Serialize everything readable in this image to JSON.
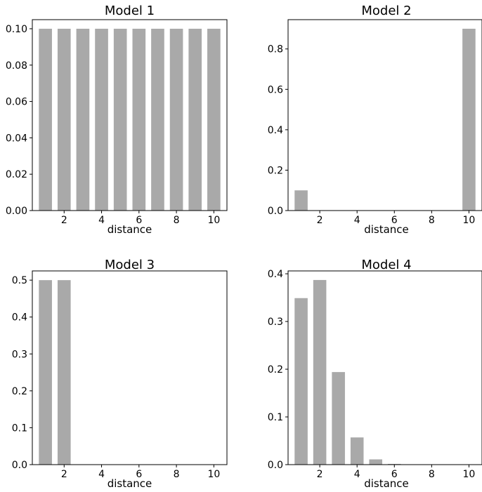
{
  "chart_data": [
    {
      "type": "bar",
      "title": "Model 1",
      "xlabel": "distance",
      "ylabel": "",
      "x": [
        1,
        2,
        3,
        4,
        5,
        6,
        7,
        8,
        9,
        10
      ],
      "values": [
        0.1,
        0.1,
        0.1,
        0.1,
        0.1,
        0.1,
        0.1,
        0.1,
        0.1,
        0.1
      ],
      "xlim": [
        0.3,
        10.7
      ],
      "ylim": [
        0,
        0.105
      ],
      "xticks": [
        2,
        4,
        6,
        8,
        10
      ],
      "xtick_labels": [
        "2",
        "4",
        "6",
        "8",
        "10"
      ],
      "yticks": [
        0,
        0.02,
        0.04,
        0.06,
        0.08,
        0.1
      ],
      "ytick_labels": [
        "0.00",
        "0.02",
        "0.04",
        "0.06",
        "0.08",
        "0.10"
      ],
      "color": "#a9a9a9",
      "grid": false
    },
    {
      "type": "bar",
      "title": "Model 2",
      "xlabel": "distance",
      "ylabel": "",
      "x": [
        1,
        2,
        3,
        4,
        5,
        6,
        7,
        8,
        9,
        10
      ],
      "values": [
        0.1,
        0,
        0,
        0,
        0,
        0,
        0,
        0,
        0,
        0.9
      ],
      "xlim": [
        0.3,
        10.7
      ],
      "ylim": [
        0,
        0.945
      ],
      "xticks": [
        2,
        4,
        6,
        8,
        10
      ],
      "xtick_labels": [
        "2",
        "4",
        "6",
        "8",
        "10"
      ],
      "yticks": [
        0,
        0.2,
        0.4,
        0.6,
        0.8
      ],
      "ytick_labels": [
        "0.0",
        "0.2",
        "0.4",
        "0.6",
        "0.8"
      ],
      "color": "#a9a9a9",
      "grid": false
    },
    {
      "type": "bar",
      "title": "Model 3",
      "xlabel": "distance",
      "ylabel": "",
      "x": [
        1,
        2,
        3,
        4,
        5,
        6,
        7,
        8,
        9,
        10
      ],
      "values": [
        0.5,
        0.5,
        0,
        0,
        0,
        0,
        0,
        0,
        0,
        0
      ],
      "xlim": [
        0.3,
        10.7
      ],
      "ylim": [
        0,
        0.525
      ],
      "xticks": [
        2,
        4,
        6,
        8,
        10
      ],
      "xtick_labels": [
        "2",
        "4",
        "6",
        "8",
        "10"
      ],
      "yticks": [
        0,
        0.1,
        0.2,
        0.3,
        0.4,
        0.5
      ],
      "ytick_labels": [
        "0.0",
        "0.1",
        "0.2",
        "0.3",
        "0.4",
        "0.5"
      ],
      "color": "#a9a9a9",
      "grid": false
    },
    {
      "type": "bar",
      "title": "Model 4",
      "xlabel": "distance",
      "ylabel": "",
      "x": [
        1,
        2,
        3,
        4,
        5,
        6,
        7,
        8,
        9,
        10
      ],
      "values": [
        0.349,
        0.387,
        0.194,
        0.057,
        0.011,
        0.0015,
        0.0001,
        0,
        0,
        0
      ],
      "xlim": [
        0.3,
        10.7
      ],
      "ylim": [
        0,
        0.406
      ],
      "xticks": [
        2,
        4,
        6,
        8,
        10
      ],
      "xtick_labels": [
        "2",
        "4",
        "6",
        "8",
        "10"
      ],
      "yticks": [
        0,
        0.1,
        0.2,
        0.3,
        0.4
      ],
      "ytick_labels": [
        "0.0",
        "0.1",
        "0.2",
        "0.3",
        "0.4"
      ],
      "color": "#a9a9a9",
      "grid": false
    }
  ]
}
